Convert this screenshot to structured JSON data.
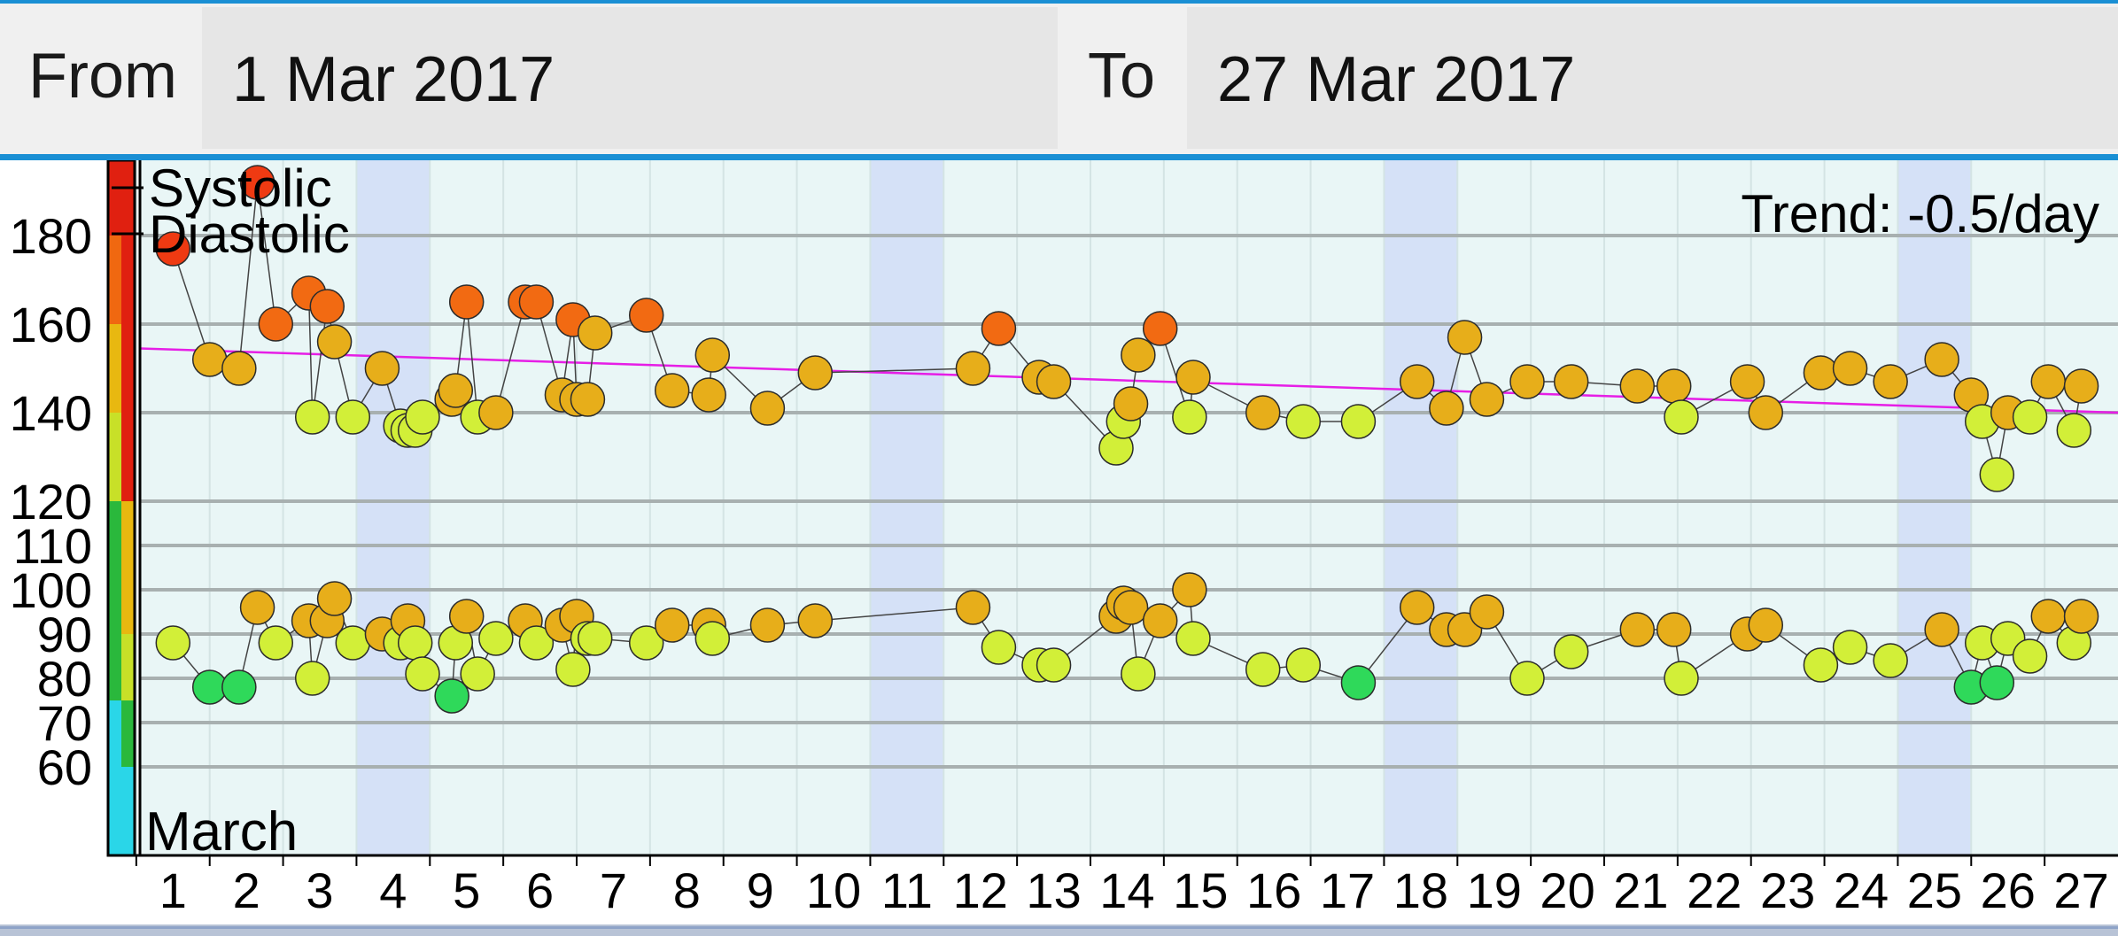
{
  "header": {
    "from_label": "From",
    "from_value": "1 Mar 2017",
    "to_label": "To",
    "to_value": "27 Mar 2017"
  },
  "chart_data": {
    "type": "scatter",
    "title": "",
    "xlabel": "March",
    "ylabel": "",
    "trend_label": "Trend: -0.5/day",
    "legend": [
      "Systolic",
      "Diastolic"
    ],
    "x_ticks": [
      1,
      2,
      3,
      4,
      5,
      6,
      7,
      8,
      9,
      10,
      11,
      12,
      13,
      14,
      15,
      16,
      17,
      18,
      19,
      20,
      21,
      22,
      23,
      24,
      25,
      26,
      27
    ],
    "y_ticks": [
      60,
      70,
      80,
      90,
      100,
      110,
      120,
      140,
      160,
      180
    ],
    "xlim": [
      0.55,
      27.5
    ],
    "ylim": [
      40,
      197
    ],
    "weekend_days": [
      4,
      11,
      18,
      25
    ],
    "trend_line": {
      "x": [
        0.55,
        27.5
      ],
      "y": [
        154.5,
        140
      ]
    },
    "colors": {
      "trend": "#e61ee6",
      "weekend": "#d5e1f7",
      "plot_bg": "#e9f6f6",
      "grid": "#a8b0b0",
      "connector": "#444444"
    },
    "color_scale": [
      {
        "y_from": 40,
        "y_to": 60,
        "left": "#2ad6e8",
        "right": "#2ad6e8"
      },
      {
        "y_from": 60,
        "y_to": 75,
        "left": "#2ad6e8",
        "right": "#2ab83c"
      },
      {
        "y_from": 75,
        "y_to": 90,
        "left": "#2ab83c",
        "right": "#c8e028"
      },
      {
        "y_from": 90,
        "y_to": 120,
        "left": "#2ab83c",
        "right": "#e8b810"
      },
      {
        "y_from": 120,
        "y_to": 140,
        "left": "#c8e028",
        "right": "#e02010"
      },
      {
        "y_from": 140,
        "y_to": 160,
        "left": "#e8b810",
        "right": "#e02010"
      },
      {
        "y_from": 160,
        "y_to": 180,
        "left": "#f06810",
        "right": "#e02010"
      },
      {
        "y_from": 180,
        "y_to": 197,
        "left": "#e02010",
        "right": "#e02010"
      }
    ],
    "series": [
      {
        "name": "Systolic",
        "x": [
          1,
          1.5,
          1.9,
          2.15,
          2.4,
          2.85,
          2.9,
          3.1,
          3.2,
          3.45,
          3.85,
          4.1,
          4.2,
          4.3,
          4.4,
          4.8,
          4.85,
          5.0,
          5.15,
          5.4,
          5.8,
          5.95,
          6.3,
          6.45,
          6.5,
          6.65,
          6.75,
          7.45,
          7.8,
          8.3,
          8.35,
          9.1,
          9.75,
          11.9,
          12.25,
          12.8,
          13.0,
          13.85,
          13.95,
          14.05,
          14.15,
          14.45,
          14.85,
          14.9,
          15.85,
          16.4,
          17.15,
          17.95,
          18.35,
          18.6,
          18.9,
          19.45,
          20.05,
          20.95,
          21.45,
          21.55,
          22.45,
          22.7,
          23.45,
          23.85,
          24.4,
          25.1,
          25.5,
          25.65,
          25.85,
          26.0,
          26.3,
          26.55,
          26.9,
          27.0
        ],
        "y": [
          177,
          152,
          150,
          192,
          160,
          167,
          139,
          164,
          156,
          139,
          150,
          137,
          136,
          136,
          139,
          143,
          145,
          165,
          139,
          140,
          165,
          165,
          144,
          161,
          143,
          143,
          158,
          162,
          145,
          144,
          153,
          141,
          149,
          150,
          159,
          148,
          147,
          132,
          138,
          142,
          153,
          159,
          139,
          148,
          140,
          138,
          138,
          147,
          141,
          157,
          143,
          147,
          147,
          146,
          146,
          139,
          147,
          140,
          149,
          150,
          147,
          152,
          144,
          138,
          126,
          140,
          139,
          147,
          136,
          146
        ]
      },
      {
        "name": "Diastolic",
        "x": [
          1,
          1.5,
          1.9,
          2.15,
          2.4,
          2.85,
          2.9,
          3.1,
          3.2,
          3.45,
          3.85,
          4.1,
          4.2,
          4.3,
          4.4,
          4.8,
          4.85,
          5.0,
          5.15,
          5.4,
          5.8,
          5.95,
          6.3,
          6.45,
          6.5,
          6.65,
          6.75,
          7.45,
          7.8,
          8.3,
          8.35,
          9.1,
          9.75,
          11.9,
          12.25,
          12.8,
          13.0,
          13.85,
          13.95,
          14.05,
          14.15,
          14.45,
          14.85,
          14.9,
          15.85,
          16.4,
          17.15,
          17.95,
          18.35,
          18.6,
          18.9,
          19.45,
          20.05,
          20.95,
          21.45,
          21.55,
          22.45,
          22.7,
          23.45,
          23.85,
          24.4,
          25.1,
          25.5,
          25.65,
          25.85,
          26.0,
          26.3,
          26.55,
          26.9,
          27.0
        ],
        "y": [
          88,
          78,
          78,
          96,
          88,
          93,
          80,
          93,
          98,
          88,
          90,
          88,
          93,
          88,
          81,
          76,
          88,
          94,
          81,
          89,
          93,
          88,
          92,
          82,
          94,
          89,
          89,
          88,
          92,
          92,
          89,
          92,
          93,
          96,
          87,
          83,
          83,
          94,
          97,
          96,
          81,
          93,
          100,
          89,
          82,
          83,
          79,
          96,
          91,
          91,
          95,
          80,
          86,
          91,
          91,
          80,
          90,
          92,
          83,
          87,
          84,
          91,
          78,
          88,
          79,
          89,
          85,
          94,
          88,
          94
        ]
      }
    ]
  }
}
